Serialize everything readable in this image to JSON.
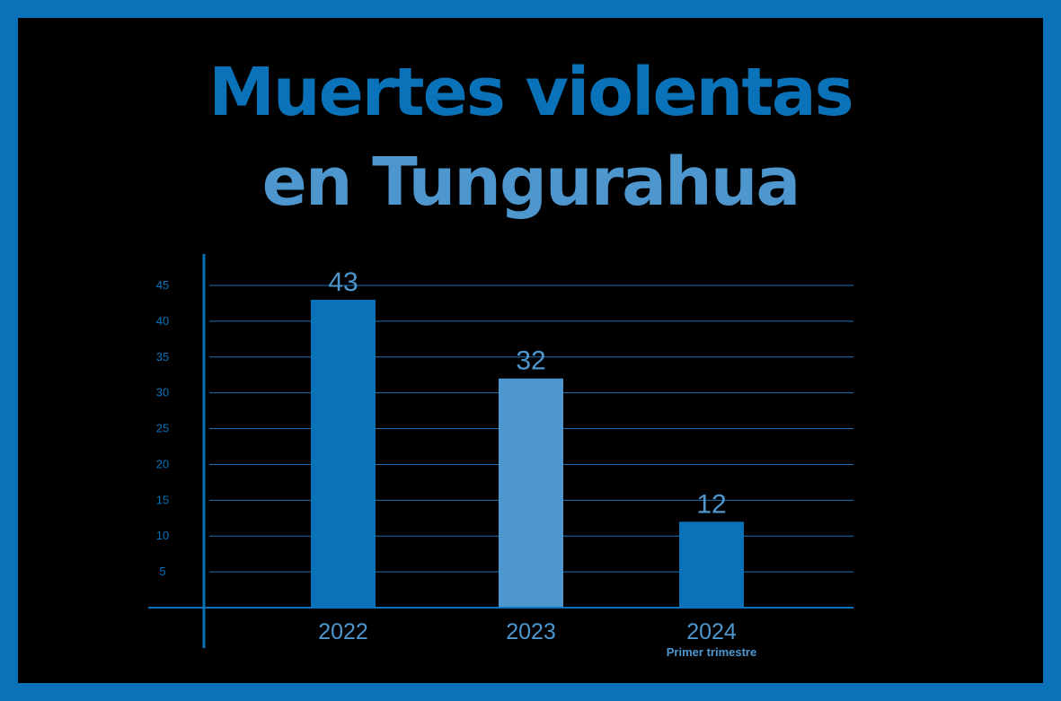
{
  "colors": {
    "border": "#0a72b8",
    "background": "#000000",
    "dark_blue": "#0a72b8",
    "light_blue": "#4d96ce",
    "grid": "#1f6fb3"
  },
  "title": {
    "line1": "Muertes violentas",
    "line2": "en Tungurahua"
  },
  "chart_data": {
    "type": "bar",
    "title": "Muertes violentas en Tungurahua",
    "categories": [
      "2022",
      "2023",
      "2024"
    ],
    "category_sublabels": [
      "",
      "",
      "Primer trimestre"
    ],
    "values": [
      43,
      32,
      12
    ],
    "data_labels": [
      "43",
      "32",
      "12"
    ],
    "bar_colors": [
      "#0a72b8",
      "#4d96ce",
      "#0a72b8"
    ],
    "yticks": [
      5,
      10,
      15,
      20,
      25,
      30,
      35,
      40,
      45
    ],
    "ylim": [
      0,
      45
    ],
    "grid": true,
    "legend": false,
    "xlabel": "",
    "ylabel": ""
  }
}
